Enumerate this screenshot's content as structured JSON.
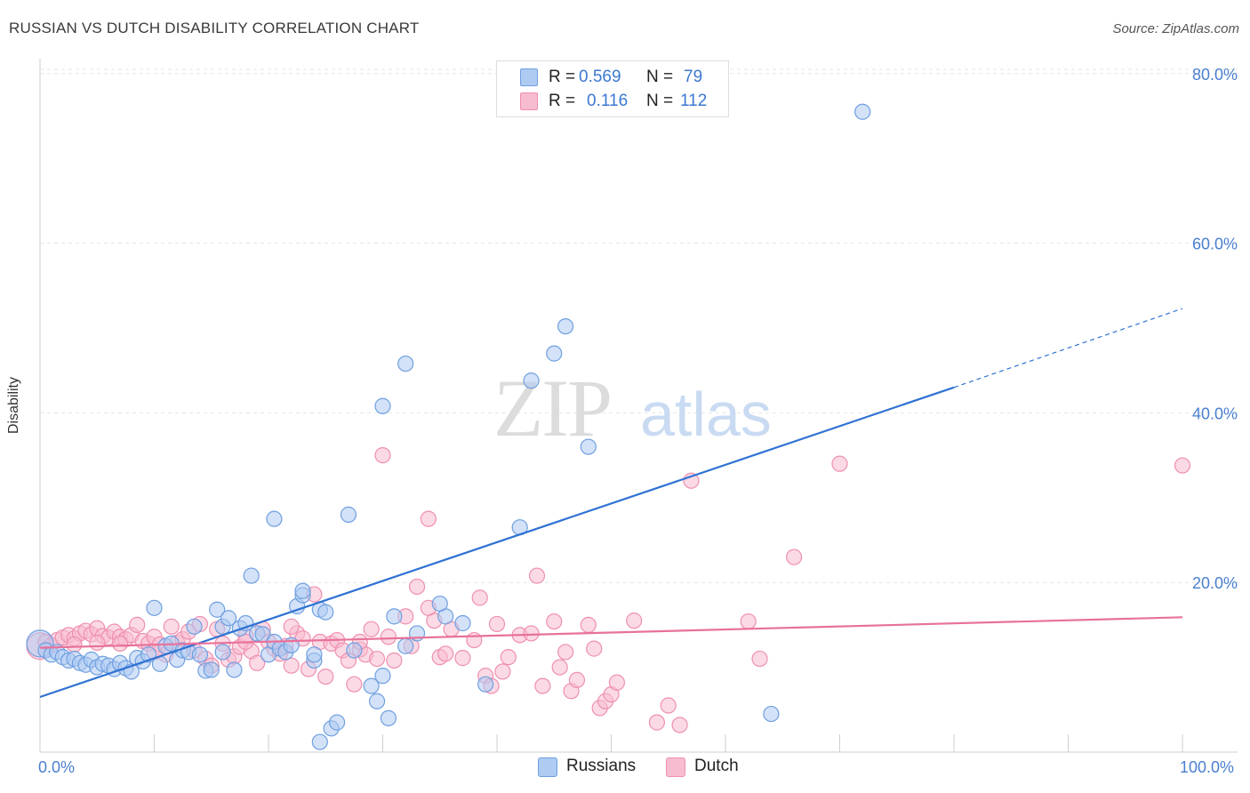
{
  "title": "RUSSIAN VS DUTCH DISABILITY CORRELATION CHART",
  "source": "Source: ZipAtlas.com",
  "watermark": "ZIPatlas",
  "colors": {
    "russians_fill": "#aecbf2",
    "russians_stroke": "#6f9fe0",
    "russians_line": "#2f72d3",
    "dutch_fill": "#f7bcd0",
    "dutch_stroke": "#ef8fb0",
    "dutch_line": "#e8719a",
    "axis_label": "#4a7fd0",
    "grid": "#e6e6e6"
  },
  "legend": {
    "russians": {
      "r_label": "R =",
      "r_value": "0.569",
      "n_label": "N =",
      "n_value": "79"
    },
    "dutch": {
      "r_label": "R =",
      "r_value": "0.116",
      "n_label": "N =",
      "n_value": "112"
    }
  },
  "chart_data": {
    "type": "scatter",
    "title": "RUSSIAN VS DUTCH DISABILITY CORRELATION CHART",
    "xlabel": "",
    "ylabel": "Disability",
    "xlim": [
      0,
      100
    ],
    "ylim": [
      0,
      85
    ],
    "x_tick_labels": [
      "0.0%",
      "100.0%"
    ],
    "y_ticks": [
      20,
      40,
      60,
      80
    ],
    "y_tick_labels": [
      "20.0%",
      "40.0%",
      "60.0%",
      "80.0%"
    ],
    "grid": true,
    "legend_position": "bottom-center",
    "series": [
      {
        "name": "Russians",
        "r": 0.569,
        "n": 79,
        "trend": {
          "x": [
            0,
            80
          ],
          "y": [
            6.5,
            43.0
          ]
        },
        "trend_dashed": {
          "x": [
            80,
            100
          ],
          "y": [
            43.0,
            52.3
          ]
        },
        "points": [
          [
            0,
            12.8
          ],
          [
            0.5,
            12.0
          ],
          [
            1,
            11.5
          ],
          [
            1.5,
            11.8
          ],
          [
            2,
            11.2
          ],
          [
            2.5,
            10.8
          ],
          [
            3,
            11.0
          ],
          [
            3.5,
            10.5
          ],
          [
            4,
            10.3
          ],
          [
            4.5,
            10.9
          ],
          [
            5,
            10.0
          ],
          [
            5.5,
            10.4
          ],
          [
            6,
            10.2
          ],
          [
            6.5,
            9.8
          ],
          [
            7,
            10.5
          ],
          [
            7.5,
            9.9
          ],
          [
            8,
            9.5
          ],
          [
            8.5,
            11.1
          ],
          [
            9,
            10.7
          ],
          [
            9.5,
            11.5
          ],
          [
            10,
            17.0
          ],
          [
            10.5,
            10.4
          ],
          [
            11,
            12.5
          ],
          [
            11.5,
            12.8
          ],
          [
            12,
            10.9
          ],
          [
            12.5,
            12.0
          ],
          [
            13,
            11.8
          ],
          [
            13.5,
            14.8
          ],
          [
            14,
            11.5
          ],
          [
            14.5,
            9.6
          ],
          [
            15,
            9.7
          ],
          [
            15.5,
            16.8
          ],
          [
            16,
            14.8
          ],
          [
            16.5,
            15.8
          ],
          [
            17,
            9.7
          ],
          [
            17.5,
            14.6
          ],
          [
            18,
            15.2
          ],
          [
            18.5,
            20.8
          ],
          [
            19,
            14.0
          ],
          [
            19.5,
            13.9
          ],
          [
            20,
            11.5
          ],
          [
            20.5,
            13.0
          ],
          [
            20.5,
            27.5
          ],
          [
            21,
            12.2
          ],
          [
            21.5,
            11.8
          ],
          [
            22,
            12.6
          ],
          [
            22.5,
            17.2
          ],
          [
            23,
            18.5
          ],
          [
            23,
            19.0
          ],
          [
            24,
            10.8
          ],
          [
            24,
            11.5
          ],
          [
            24.5,
            16.8
          ],
          [
            24.5,
            1.2
          ],
          [
            25.5,
            2.8
          ],
          [
            26,
            3.5
          ],
          [
            27,
            28.0
          ],
          [
            27.5,
            12.0
          ],
          [
            29,
            7.8
          ],
          [
            29.5,
            6.0
          ],
          [
            30,
            9.0
          ],
          [
            30.5,
            4.0
          ],
          [
            32,
            12.5
          ],
          [
            32,
            45.8
          ],
          [
            30,
            40.8
          ],
          [
            33,
            14.0
          ],
          [
            35.5,
            16.0
          ],
          [
            37,
            15.2
          ],
          [
            39,
            8.0
          ],
          [
            42,
            26.5
          ],
          [
            43,
            43.8
          ],
          [
            45,
            47.0
          ],
          [
            46,
            50.2
          ],
          [
            48,
            36.0
          ],
          [
            72,
            75.5
          ],
          [
            64,
            4.5
          ],
          [
            16,
            11.8
          ],
          [
            35,
            17.5
          ],
          [
            25,
            16.5
          ],
          [
            31,
            16.0
          ]
        ]
      },
      {
        "name": "Dutch",
        "r": 0.116,
        "n": 112,
        "trend": {
          "x": [
            0,
            100
          ],
          "y": [
            12.3,
            15.9
          ]
        },
        "points": [
          [
            0,
            12.5
          ],
          [
            0.5,
            13.0
          ],
          [
            1,
            12.6
          ],
          [
            1.5,
            13.2
          ],
          [
            2,
            13.5
          ],
          [
            2.5,
            13.8
          ],
          [
            3,
            13.4
          ],
          [
            3.5,
            14.0
          ],
          [
            4,
            14.3
          ],
          [
            4.5,
            13.9
          ],
          [
            5,
            14.6
          ],
          [
            5.5,
            13.7
          ],
          [
            6,
            13.5
          ],
          [
            6.5,
            14.2
          ],
          [
            7,
            13.6
          ],
          [
            7.5,
            13.3
          ],
          [
            8,
            13.8
          ],
          [
            8.5,
            15.0
          ],
          [
            9,
            13.1
          ],
          [
            9.5,
            12.8
          ],
          [
            10,
            13.6
          ],
          [
            10.5,
            12.7
          ],
          [
            11,
            11.5
          ],
          [
            11.5,
            14.8
          ],
          [
            12,
            12.9
          ],
          [
            12.5,
            13.3
          ],
          [
            13,
            14.2
          ],
          [
            13.5,
            12.0
          ],
          [
            14,
            15.1
          ],
          [
            14.5,
            11.0
          ],
          [
            15,
            10.2
          ],
          [
            15.5,
            14.5
          ],
          [
            16,
            12.8
          ],
          [
            16.5,
            10.9
          ],
          [
            17,
            11.3
          ],
          [
            17.5,
            12.4
          ],
          [
            18,
            13.7
          ],
          [
            18.5,
            11.9
          ],
          [
            19,
            10.5
          ],
          [
            19.5,
            14.5
          ],
          [
            20,
            13.0
          ],
          [
            20.5,
            12.2
          ],
          [
            21,
            11.6
          ],
          [
            21.5,
            12.5
          ],
          [
            22,
            10.2
          ],
          [
            22.5,
            14.0
          ],
          [
            23,
            13.4
          ],
          [
            23.5,
            9.8
          ],
          [
            24,
            18.6
          ],
          [
            24.5,
            13.0
          ],
          [
            25,
            8.9
          ],
          [
            25.5,
            12.8
          ],
          [
            26,
            13.2
          ],
          [
            26.5,
            12.0
          ],
          [
            27,
            10.8
          ],
          [
            27.5,
            8.0
          ],
          [
            28,
            12.1
          ],
          [
            28.5,
            11.5
          ],
          [
            29,
            14.5
          ],
          [
            29.5,
            11.0
          ],
          [
            30,
            35.0
          ],
          [
            30.5,
            13.6
          ],
          [
            31,
            10.8
          ],
          [
            32,
            16.0
          ],
          [
            32.5,
            12.5
          ],
          [
            33,
            19.5
          ],
          [
            34,
            27.5
          ],
          [
            34.5,
            15.5
          ],
          [
            35,
            11.2
          ],
          [
            35.5,
            11.6
          ],
          [
            36,
            14.5
          ],
          [
            37,
            11.1
          ],
          [
            38,
            13.2
          ],
          [
            38.5,
            18.2
          ],
          [
            39,
            9.0
          ],
          [
            39.5,
            7.8
          ],
          [
            40,
            15.1
          ],
          [
            40.5,
            9.5
          ],
          [
            41,
            11.2
          ],
          [
            42,
            13.8
          ],
          [
            43,
            14.0
          ],
          [
            43.5,
            20.8
          ],
          [
            44,
            7.8
          ],
          [
            45,
            15.4
          ],
          [
            45.5,
            10.0
          ],
          [
            46,
            11.8
          ],
          [
            46.5,
            7.2
          ],
          [
            47,
            8.5
          ],
          [
            48,
            15.0
          ],
          [
            48.5,
            12.2
          ],
          [
            49,
            5.2
          ],
          [
            49.5,
            6.0
          ],
          [
            50,
            6.8
          ],
          [
            50.5,
            8.2
          ],
          [
            52,
            15.5
          ],
          [
            54,
            3.5
          ],
          [
            55,
            5.5
          ],
          [
            56,
            3.2
          ],
          [
            57,
            32.0
          ],
          [
            62,
            15.4
          ],
          [
            63,
            11.0
          ],
          [
            66,
            23.0
          ],
          [
            70,
            34.0
          ],
          [
            100,
            33.8
          ],
          [
            34,
            17.0
          ],
          [
            28,
            13.0
          ],
          [
            22,
            14.8
          ],
          [
            18,
            13.0
          ],
          [
            10,
            11.8
          ],
          [
            7,
            12.8
          ],
          [
            5,
            12.9
          ],
          [
            3,
            12.7
          ]
        ]
      }
    ]
  }
}
